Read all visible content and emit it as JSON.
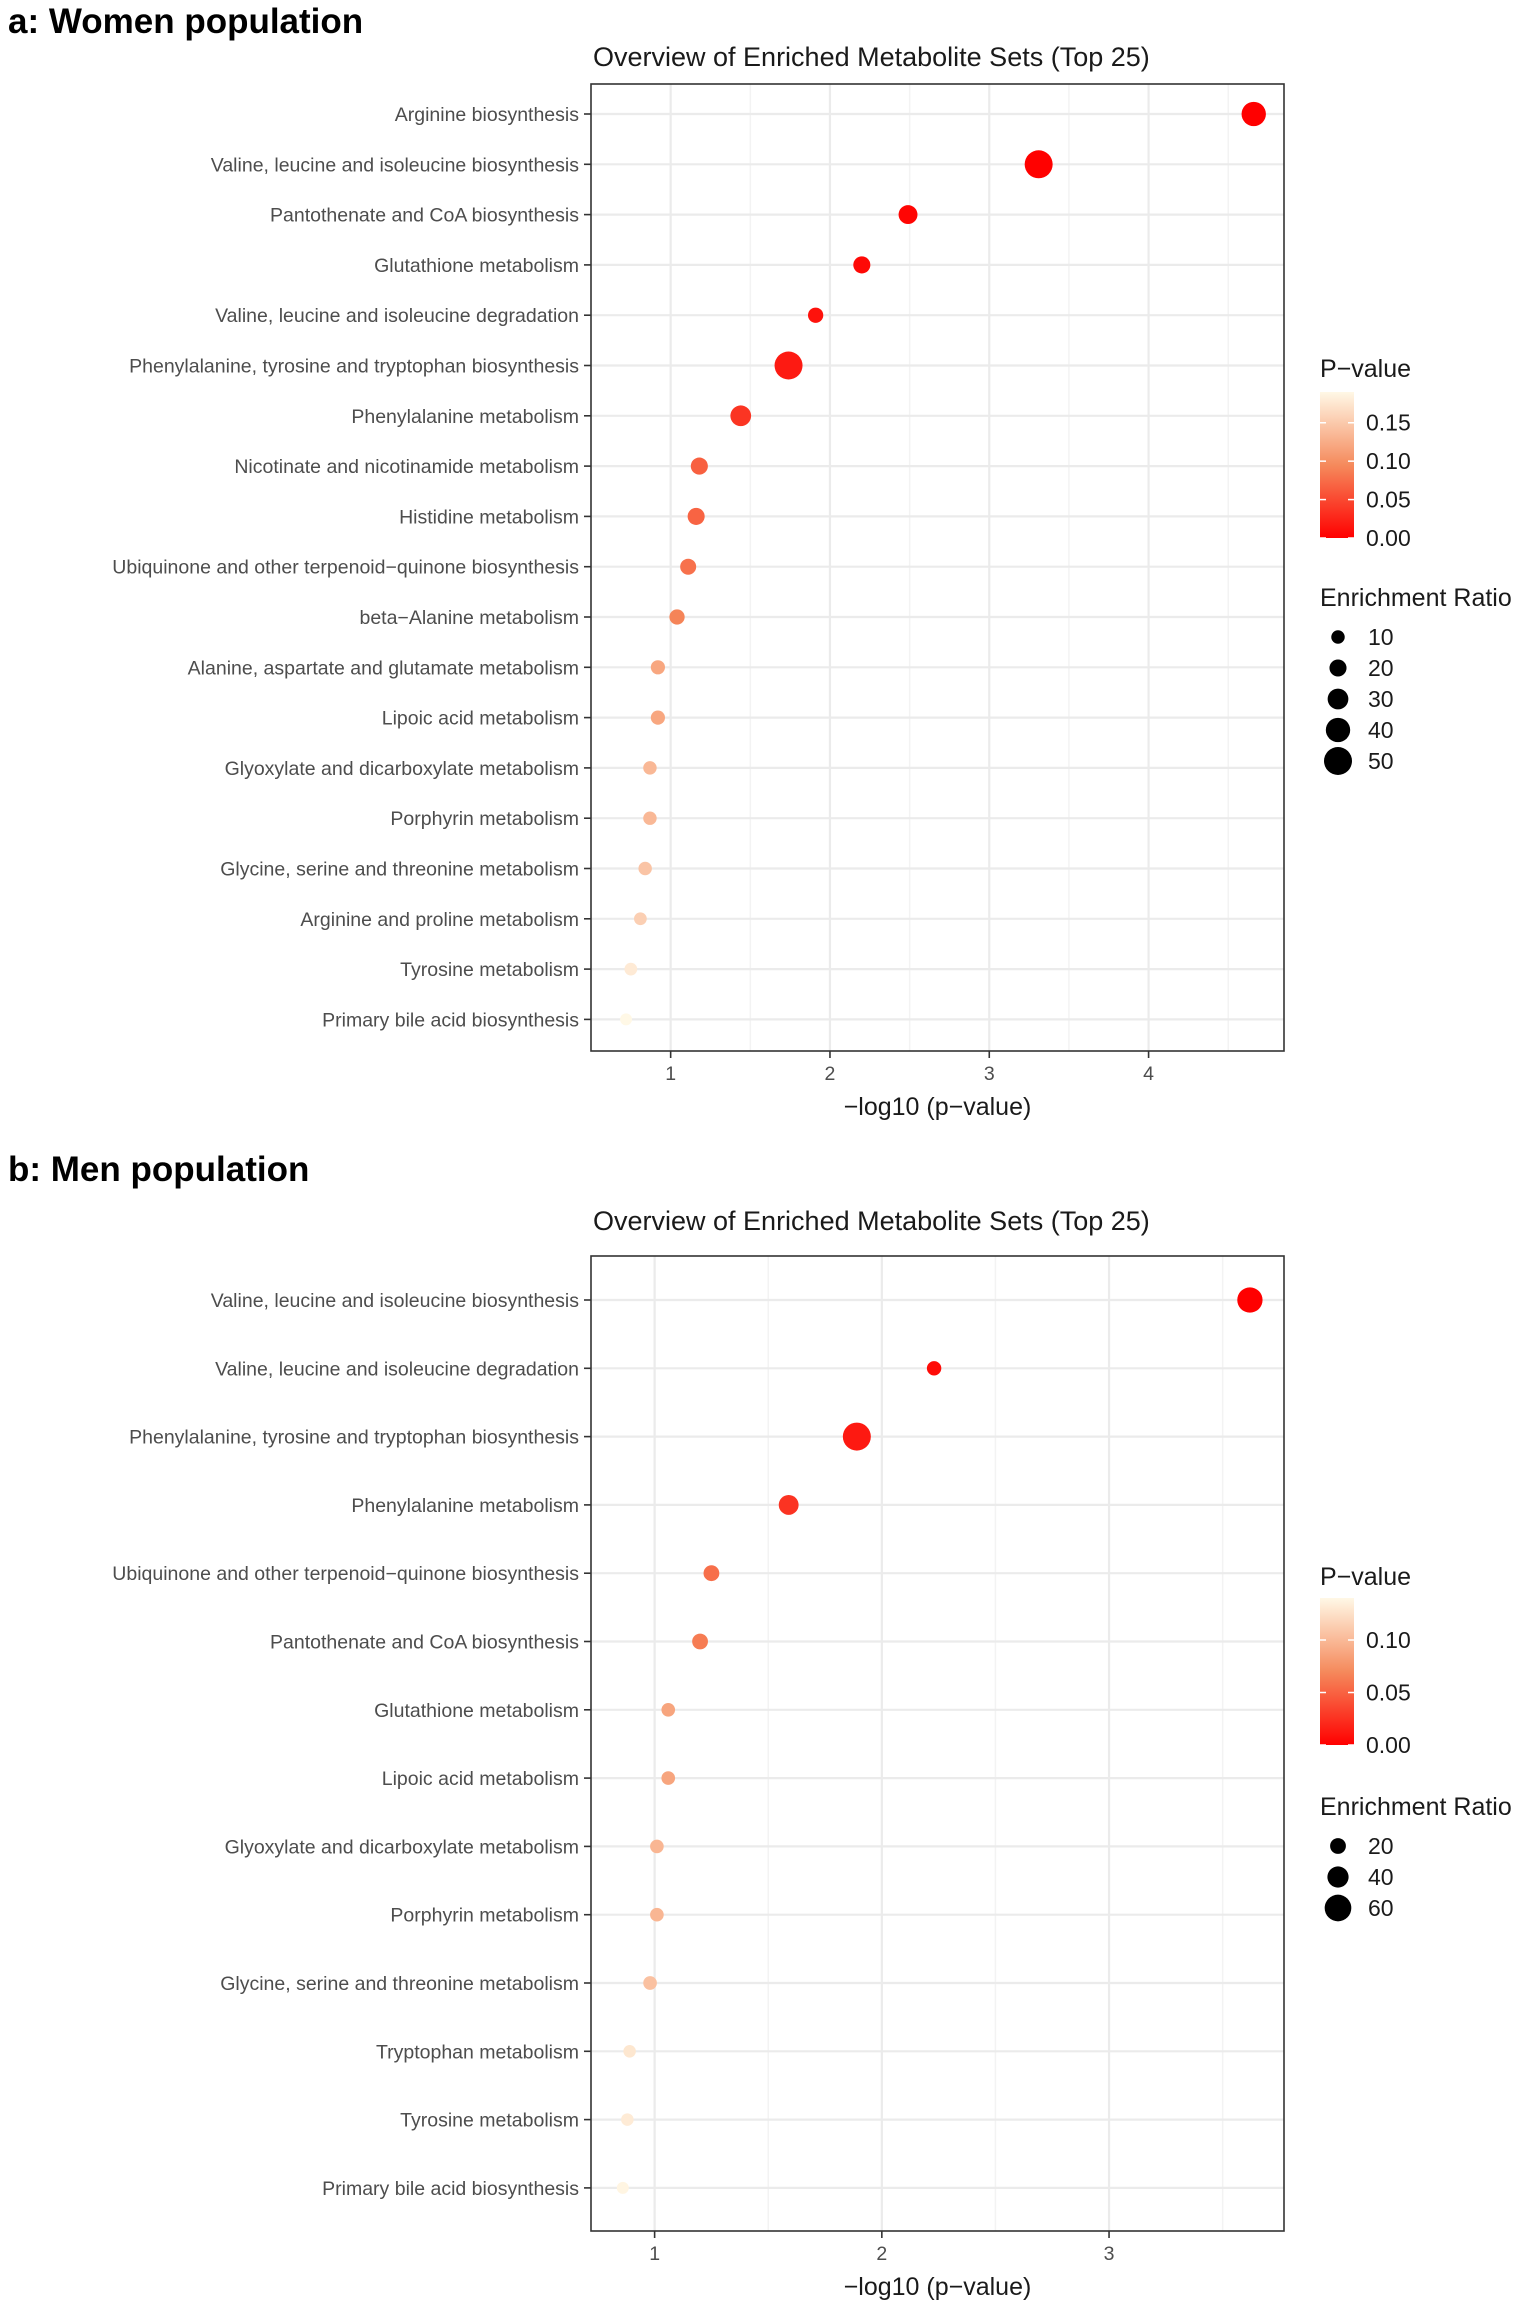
{
  "chart_data": [
    {
      "type": "scatter",
      "panel_label": "a: Women population",
      "title": "Overview of Enriched Metabolite Sets (Top 25)",
      "xlabel": "−log10 (p−value)",
      "ylabel": "",
      "xlim": [
        0.5,
        4.85
      ],
      "xticks": [
        1,
        2,
        3,
        4
      ],
      "xtick_labels": [
        "1",
        "2",
        "3",
        "4"
      ],
      "grid": true,
      "categories": [
        "Arginine biosynthesis",
        "Valine, leucine and isoleucine biosynthesis",
        "Pantothenate and CoA biosynthesis",
        "Glutathione metabolism",
        "Valine, leucine and isoleucine degradation",
        "Phenylalanine, tyrosine and tryptophan biosynthesis",
        "Phenylalanine metabolism",
        "Nicotinate and nicotinamide metabolism",
        "Histidine metabolism",
        "Ubiquinone and other terpenoid−quinone biosynthesis",
        "beta−Alanine metabolism",
        "Alanine, aspartate and glutamate metabolism",
        "Lipoic acid metabolism",
        "Glyoxylate and dicarboxylate metabolism",
        "Porphyrin metabolism",
        "Glycine, serine and threonine metabolism",
        "Arginine and proline metabolism",
        "Tyrosine metabolism",
        "Primary bile acid biosynthesis"
      ],
      "x": [
        4.66,
        3.31,
        2.49,
        2.2,
        1.91,
        1.74,
        1.44,
        1.18,
        1.16,
        1.11,
        1.04,
        0.92,
        0.92,
        0.87,
        0.87,
        0.84,
        0.81,
        0.75,
        0.72
      ],
      "enrichment_ratio": [
        40,
        50,
        25,
        20,
        15,
        50,
        30,
        20,
        20,
        17,
        15,
        12,
        12,
        10,
        10,
        10,
        8,
        8,
        6
      ],
      "p_value": [
        2e-05,
        0.0005,
        0.0032,
        0.0063,
        0.0123,
        0.0182,
        0.0363,
        0.066,
        0.069,
        0.078,
        0.091,
        0.12,
        0.12,
        0.135,
        0.135,
        0.145,
        0.155,
        0.178,
        0.19
      ],
      "legend": {
        "position": "right",
        "color_title": "P−value",
        "color_ticks": [
          0.15,
          0.1,
          0.05,
          0.0
        ],
        "color_tick_labels": [
          "0.15",
          "0.10",
          "0.05",
          "0.00"
        ],
        "color_max": 0.19,
        "size_title": "Enrichment Ratio",
        "size_ticks": [
          10,
          20,
          30,
          40,
          50
        ],
        "size_tick_labels": [
          "10",
          "20",
          "30",
          "40",
          "50"
        ]
      }
    },
    {
      "type": "scatter",
      "panel_label": "b: Men population",
      "title": "Overview of Enriched Metabolite Sets (Top 25)",
      "xlabel": "−log10 (p−value)",
      "ylabel": "",
      "xlim": [
        0.72,
        3.77
      ],
      "xticks": [
        1,
        2,
        3
      ],
      "xtick_labels": [
        "1",
        "2",
        "3"
      ],
      "grid": true,
      "categories": [
        "Valine, leucine and isoleucine biosynthesis",
        "Valine, leucine and isoleucine degradation",
        "Phenylalanine, tyrosine and tryptophan biosynthesis",
        "Phenylalanine metabolism",
        "Ubiquinone and other terpenoid−quinone biosynthesis",
        "Pantothenate and CoA biosynthesis",
        "Glutathione metabolism",
        "Lipoic acid metabolism",
        "Glyoxylate and dicarboxylate metabolism",
        "Porphyrin metabolism",
        "Glycine, serine and threonine metabolism",
        "Tryptophan metabolism",
        "Tyrosine metabolism",
        "Primary bile acid biosynthesis"
      ],
      "x": [
        3.62,
        2.23,
        1.89,
        1.59,
        1.25,
        1.2,
        1.06,
        1.06,
        1.01,
        1.01,
        0.98,
        0.89,
        0.88,
        0.86
      ],
      "enrichment_ratio": [
        55,
        15,
        65,
        35,
        20,
        20,
        12,
        12,
        12,
        12,
        12,
        8,
        8,
        6
      ],
      "p_value": [
        0.0002,
        0.0059,
        0.0129,
        0.0257,
        0.0562,
        0.0631,
        0.087,
        0.087,
        0.098,
        0.098,
        0.105,
        0.129,
        0.132,
        0.138
      ],
      "legend": {
        "position": "right",
        "color_title": "P−value",
        "color_ticks": [
          0.1,
          0.05,
          0.0
        ],
        "color_tick_labels": [
          "0.10",
          "0.05",
          "0.00"
        ],
        "color_max": 0.14,
        "size_title": "Enrichment Ratio",
        "size_ticks": [
          20,
          40,
          60
        ],
        "size_tick_labels": [
          "20",
          "40",
          "60"
        ]
      }
    }
  ],
  "colors": {
    "low": "#ff0000",
    "mid": "#f58a5c",
    "high": "#fff8e6",
    "grid": "#ebebeb",
    "panel_border": "#333333"
  }
}
